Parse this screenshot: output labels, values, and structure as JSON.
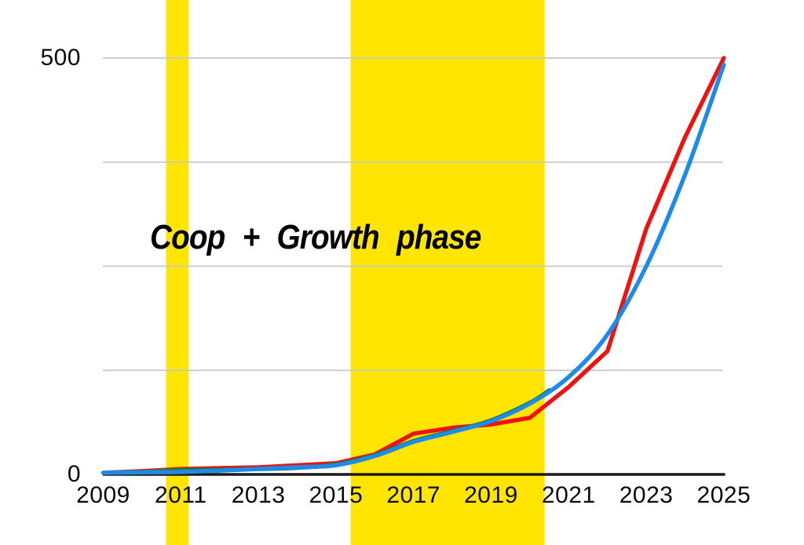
{
  "chart_data": {
    "type": "line",
    "title": "",
    "annotation": "Coop + Growth phase",
    "xlabel": "",
    "ylabel": "",
    "xlim": [
      2009,
      2025
    ],
    "ylim": [
      0,
      500
    ],
    "grid": "horizontal",
    "legend": "none",
    "x_tick_years": [
      2009,
      2011,
      2013,
      2015,
      2017,
      2019,
      2021,
      2023,
      2025
    ],
    "x_tick_labels": [
      "2009",
      "2011",
      "2013",
      "2015",
      "2017",
      "2019",
      "2021",
      "2023",
      "2025"
    ],
    "y_tick_labels": [
      "500",
      "0"
    ],
    "gridline_values": [
      0,
      125,
      250,
      375,
      500
    ],
    "highlight_bands": [
      {
        "name": "coop",
        "x_start": 2010.62,
        "x_end": 2011.2,
        "color": "#FFE500"
      },
      {
        "name": "growth",
        "x_start": 2015.38,
        "x_end": 2020.38,
        "color": "#FFE500"
      }
    ],
    "series": [
      {
        "name": "red",
        "color": "#EC1310",
        "style": "jagged",
        "points": [
          [
            2009,
            2
          ],
          [
            2010,
            4
          ],
          [
            2011,
            6.5
          ],
          [
            2012,
            7.5
          ],
          [
            2013,
            8.5
          ],
          [
            2014,
            11
          ],
          [
            2015,
            13.5
          ],
          [
            2016,
            24
          ],
          [
            2017,
            49
          ],
          [
            2018,
            56
          ],
          [
            2019,
            60
          ],
          [
            2020,
            68
          ],
          [
            2021,
            105
          ],
          [
            2022,
            148
          ],
          [
            2023,
            295
          ],
          [
            2024,
            405
          ],
          [
            2025,
            500
          ]
        ]
      },
      {
        "name": "green",
        "color": "#15802D",
        "style": "smooth",
        "points": [
          [
            2009,
            2
          ],
          [
            2010,
            3
          ],
          [
            2011,
            5
          ],
          [
            2012,
            5.5
          ],
          [
            2013,
            6.5
          ],
          [
            2014,
            8
          ],
          [
            2015,
            12
          ],
          [
            2016,
            23
          ],
          [
            2017,
            40
          ],
          [
            2018,
            52
          ],
          [
            2019,
            65
          ],
          [
            2020,
            86
          ],
          [
            2020.5,
            101
          ]
        ]
      },
      {
        "name": "blue",
        "color": "#1E8AE9",
        "style": "smooth",
        "points": [
          [
            2009,
            2
          ],
          [
            2010,
            2.5
          ],
          [
            2011,
            3
          ],
          [
            2012,
            4.5
          ],
          [
            2013,
            6.5
          ],
          [
            2014,
            8.5
          ],
          [
            2015,
            11
          ],
          [
            2016,
            22
          ],
          [
            2017,
            39
          ],
          [
            2018,
            51
          ],
          [
            2019,
            64
          ],
          [
            2020,
            85
          ],
          [
            2021,
            117
          ],
          [
            2022,
            168
          ],
          [
            2023,
            250
          ],
          [
            2024,
            360
          ],
          [
            2025,
            492
          ]
        ]
      }
    ],
    "colors": {
      "background": "#FFFFFF",
      "band": "#FFE500",
      "grid": "#C8C8C8",
      "axis": "#1A1A1A",
      "text": "#000000"
    }
  }
}
